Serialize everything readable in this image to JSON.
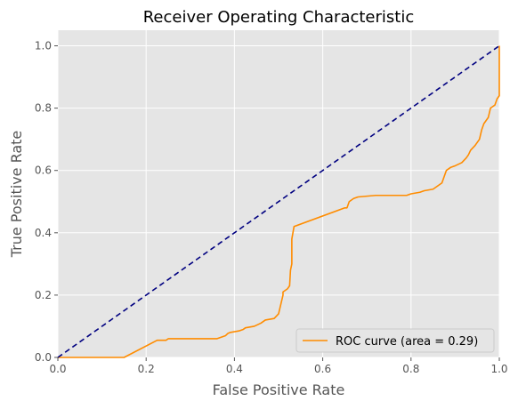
{
  "chart_data": {
    "type": "line",
    "title": "Receiver Operating Characteristic",
    "xlabel": "False Positive Rate",
    "ylabel": "True Positive Rate",
    "xlim": [
      0.0,
      1.0
    ],
    "ylim": [
      0.0,
      1.05
    ],
    "x_ticks": [
      "0.0",
      "0.2",
      "0.4",
      "0.6",
      "0.8",
      "1.0"
    ],
    "y_ticks": [
      "0.0",
      "0.2",
      "0.4",
      "0.6",
      "0.8",
      "1.0"
    ],
    "grid": true,
    "legend_position": "lower-right",
    "background_color": "#e5e5e5",
    "series": [
      {
        "name": "ROC curve (area = 0.29)",
        "color": "#ff8c00",
        "style": "solid",
        "x": [
          0.0,
          0.15,
          0.225,
          0.245,
          0.25,
          0.36,
          0.37,
          0.38,
          0.385,
          0.39,
          0.41,
          0.42,
          0.425,
          0.445,
          0.46,
          0.47,
          0.49,
          0.5,
          0.505,
          0.51,
          0.51,
          0.52,
          0.525,
          0.527,
          0.53,
          0.53,
          0.535,
          0.65,
          0.655,
          0.66,
          0.67,
          0.68,
          0.72,
          0.725,
          0.79,
          0.8,
          0.82,
          0.83,
          0.85,
          0.86,
          0.87,
          0.875,
          0.88,
          0.89,
          0.9,
          0.915,
          0.925,
          0.93,
          0.935,
          0.945,
          0.95,
          0.955,
          0.96,
          0.965,
          0.97,
          0.975,
          0.98,
          0.985,
          0.99,
          0.995,
          1.0,
          1.0
        ],
        "y": [
          0.0,
          0.0,
          0.055,
          0.055,
          0.06,
          0.06,
          0.065,
          0.07,
          0.077,
          0.08,
          0.085,
          0.09,
          0.095,
          0.1,
          0.11,
          0.12,
          0.125,
          0.14,
          0.17,
          0.2,
          0.21,
          0.22,
          0.23,
          0.28,
          0.3,
          0.38,
          0.42,
          0.48,
          0.48,
          0.5,
          0.51,
          0.515,
          0.52,
          0.52,
          0.52,
          0.525,
          0.53,
          0.535,
          0.54,
          0.55,
          0.56,
          0.58,
          0.6,
          0.61,
          0.615,
          0.625,
          0.64,
          0.65,
          0.665,
          0.68,
          0.69,
          0.7,
          0.73,
          0.75,
          0.76,
          0.77,
          0.8,
          0.805,
          0.81,
          0.83,
          0.84,
          1.0
        ]
      },
      {
        "name": "",
        "color": "#000080",
        "style": "dashed",
        "x": [
          0.0,
          1.0
        ],
        "y": [
          0.0,
          1.0
        ]
      }
    ]
  }
}
